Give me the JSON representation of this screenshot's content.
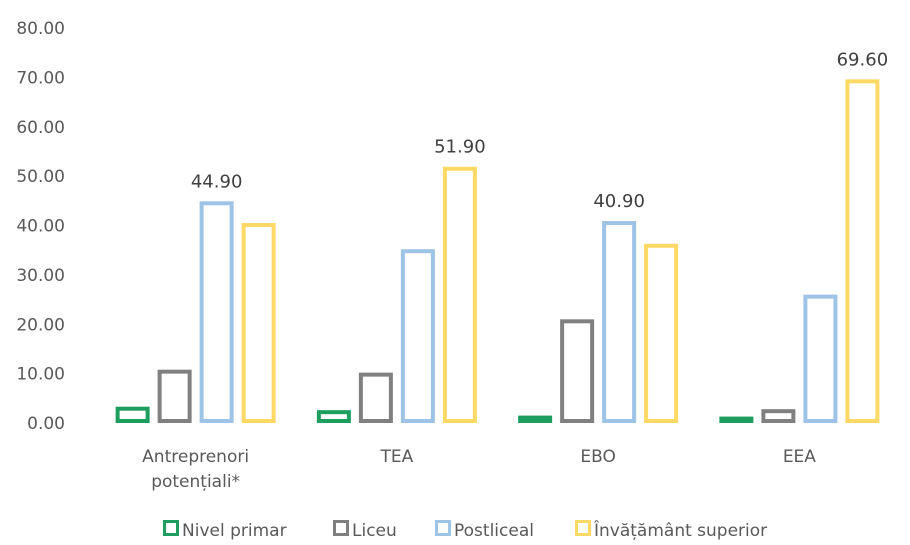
{
  "chart_data": {
    "type": "bar",
    "categories": [
      "Antreprenori potențiali*",
      "TEA",
      "EBO",
      "EEA"
    ],
    "category_lines": [
      [
        "Antreprenori",
        "potențiali*"
      ],
      [
        "TEA"
      ],
      [
        "EBO"
      ],
      [
        "EEA"
      ]
    ],
    "series": [
      {
        "name": "Nivel primar",
        "color": "#1e9e5e",
        "values": [
          3.3,
          2.6,
          1.5,
          1.3
        ]
      },
      {
        "name": "Liceu",
        "color": "#808080",
        "values": [
          10.8,
          10.2,
          21.0,
          2.8
        ]
      },
      {
        "name": "Postliceal",
        "color": "#9dc3e6",
        "values": [
          44.9,
          35.2,
          40.9,
          26.0
        ]
      },
      {
        "name": "Învățământ superior",
        "color": "#ffd966",
        "values": [
          40.5,
          51.9,
          36.3,
          69.6
        ]
      }
    ],
    "data_labels": [
      {
        "category_index": 0,
        "series_index": 2,
        "text": "44.90"
      },
      {
        "category_index": 1,
        "series_index": 3,
        "text": "51.90"
      },
      {
        "category_index": 2,
        "series_index": 2,
        "text": "40.90"
      },
      {
        "category_index": 3,
        "series_index": 3,
        "text": "69.60"
      }
    ],
    "y_ticks": [
      "0.00",
      "10.00",
      "20.00",
      "30.00",
      "40.00",
      "50.00",
      "60.00",
      "70.00",
      "80.00"
    ],
    "ylim": [
      0,
      80
    ],
    "grid": false,
    "legend_position": "bottom",
    "title": "",
    "xlabel": "",
    "ylabel": ""
  }
}
